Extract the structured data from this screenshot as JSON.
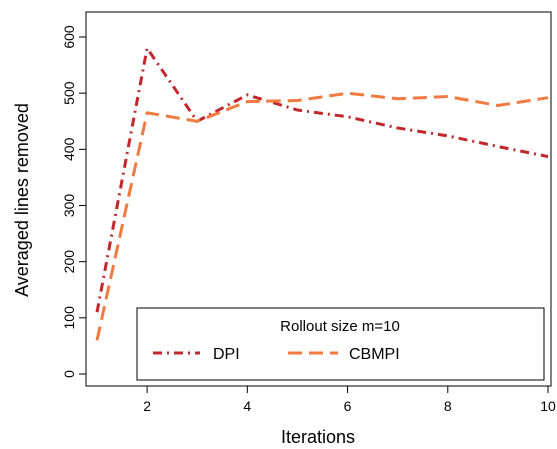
{
  "chart_data": {
    "type": "line",
    "title": "",
    "xlabel": "Iterations",
    "ylabel": "Averaged lines removed",
    "xlim": [
      1,
      10
    ],
    "ylim": [
      0,
      600
    ],
    "x_ticks": [
      2,
      4,
      6,
      8,
      10
    ],
    "y_ticks": [
      0,
      100,
      200,
      300,
      400,
      500,
      600
    ],
    "grid": false,
    "x": [
      1,
      2,
      3,
      4,
      5,
      6,
      7,
      8,
      9,
      10
    ],
    "series": [
      {
        "name": "DPI",
        "values": [
          110,
          580,
          450,
          497,
          470,
          458,
          438,
          424,
          405,
          387
        ],
        "color": "#c0282d",
        "dash": "dot-dash"
      },
      {
        "name": "CBMPI",
        "values": [
          60,
          465,
          450,
          485,
          487,
          500,
          490,
          494,
          478,
          492
        ],
        "color": "#f07a40",
        "dash": "long-dash"
      }
    ],
    "legend": {
      "title": "Rollout size m=10",
      "placement": "bottom-right"
    }
  }
}
